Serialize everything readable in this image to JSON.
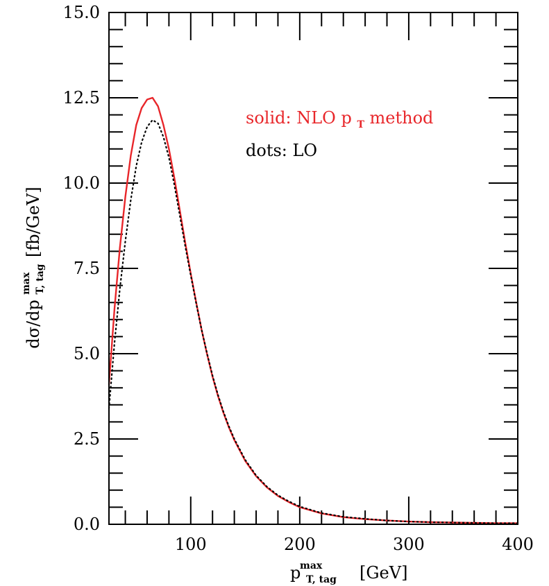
{
  "chart_data": {
    "type": "line",
    "xlabel": {
      "base": "p",
      "sub": "T, tag",
      "sup": "max",
      "unit": "[GeV]"
    },
    "ylabel": {
      "prefix": "dσ/dp",
      "sub": "T, tag",
      "sup": "max",
      "unit": "[fb/GeV]"
    },
    "xlim": [
      25,
      400
    ],
    "ylim": [
      0,
      15
    ],
    "x_ticks": [
      {
        "value": 100,
        "label": "100"
      },
      {
        "value": 200,
        "label": "200"
      },
      {
        "value": 300,
        "label": "300"
      },
      {
        "value": 400,
        "label": "400"
      }
    ],
    "y_ticks": [
      {
        "value": 0,
        "label": "0.0"
      },
      {
        "value": 2.5,
        "label": "2.5"
      },
      {
        "value": 5,
        "label": "5.0"
      },
      {
        "value": 7.5,
        "label": "7.5"
      },
      {
        "value": 10,
        "label": "10.0"
      },
      {
        "value": 12.5,
        "label": "12.5"
      },
      {
        "value": 15,
        "label": "15.0"
      }
    ],
    "legend": [
      {
        "text_main": "solid: NLO p",
        "text_sub": "T",
        "text_tail": " method",
        "color": "#e8262a"
      },
      {
        "text_main": "dots: LO",
        "text_sub": "",
        "text_tail": "",
        "color": "#000000"
      }
    ],
    "series": [
      {
        "name": "NLO pT method",
        "style": "solid",
        "color": "#e8262a",
        "x": [
          25,
          30,
          35,
          40,
          45,
          50,
          55,
          60,
          65,
          70,
          75,
          80,
          85,
          90,
          95,
          100,
          105,
          110,
          115,
          120,
          125,
          130,
          135,
          140,
          150,
          160,
          170,
          180,
          190,
          200,
          220,
          240,
          260,
          280,
          300,
          320,
          340,
          360,
          380,
          400
        ],
        "y": [
          4.1,
          6.3,
          8.1,
          9.6,
          10.8,
          11.7,
          12.2,
          12.45,
          12.5,
          12.25,
          11.7,
          11.0,
          10.15,
          9.2,
          8.25,
          7.35,
          6.5,
          5.7,
          4.98,
          4.33,
          3.76,
          3.27,
          2.84,
          2.47,
          1.86,
          1.41,
          1.08,
          0.83,
          0.65,
          0.5,
          0.32,
          0.21,
          0.15,
          0.11,
          0.08,
          0.06,
          0.05,
          0.04,
          0.03,
          0.03
        ]
      },
      {
        "name": "LO",
        "style": "dotted",
        "color": "#000000",
        "x": [
          25,
          30,
          35,
          40,
          45,
          50,
          55,
          60,
          65,
          70,
          75,
          80,
          85,
          90,
          95,
          100,
          105,
          110,
          115,
          120,
          125,
          130,
          135,
          140,
          150,
          160,
          170,
          180,
          190,
          200,
          220,
          240,
          260,
          280,
          300,
          320,
          340,
          360,
          380,
          400
        ],
        "y": [
          3.4,
          5.3,
          6.9,
          8.3,
          9.5,
          10.5,
          11.2,
          11.65,
          11.85,
          11.75,
          11.35,
          10.75,
          9.95,
          9.05,
          8.15,
          7.3,
          6.47,
          5.7,
          5.0,
          4.36,
          3.79,
          3.3,
          2.87,
          2.5,
          1.89,
          1.43,
          1.1,
          0.85,
          0.67,
          0.52,
          0.33,
          0.22,
          0.16,
          0.11,
          0.08,
          0.06,
          0.05,
          0.04,
          0.03,
          0.03
        ]
      }
    ],
    "grid": false
  }
}
